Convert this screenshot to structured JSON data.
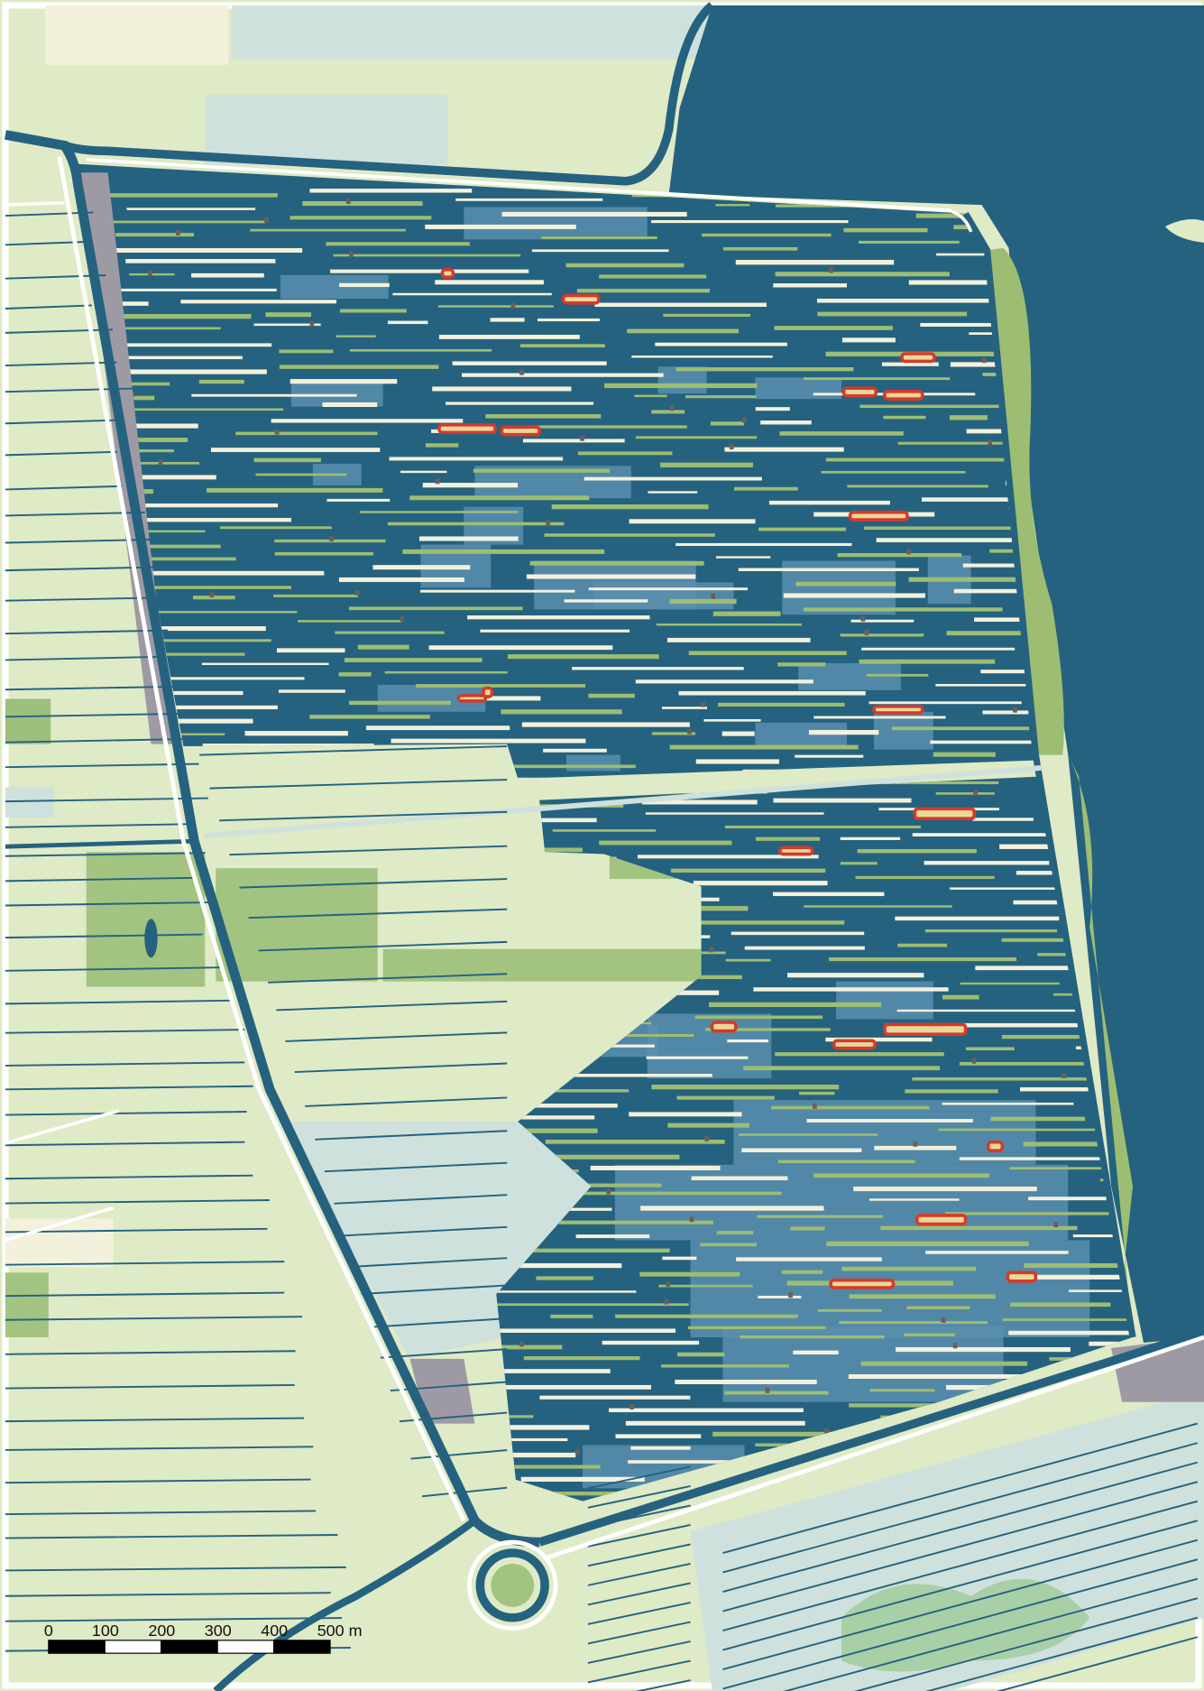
{
  "scale_bar": {
    "labels": [
      "0",
      "100",
      "200",
      "300",
      "400",
      "500 m"
    ]
  }
}
